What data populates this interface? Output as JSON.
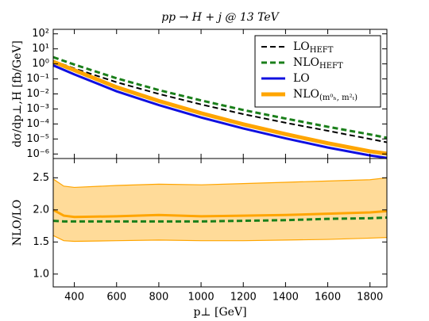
{
  "chart_data": [
    {
      "type": "line",
      "title": "pp → H + j @ 13 TeV",
      "ylabel": "dσ/dp⊥,H [fb/GeV]",
      "log_y": true,
      "ylim": [
        5e-07,
        200
      ],
      "xlim": [
        300,
        1880
      ],
      "yticks": [
        {
          "value": 1e-06,
          "label": "10⁻⁶"
        },
        {
          "value": 1e-05,
          "label": "10⁻⁵"
        },
        {
          "value": 0.0001,
          "label": "10⁻⁴"
        },
        {
          "value": 0.001,
          "label": "10⁻³"
        },
        {
          "value": 0.01,
          "label": "10⁻²"
        },
        {
          "value": 0.1,
          "label": "10⁻¹"
        },
        {
          "value": 1,
          "label": "10⁰"
        },
        {
          "value": 10,
          "label": "10¹"
        },
        {
          "value": 100,
          "label": "10²"
        }
      ],
      "xticks": [
        400,
        600,
        800,
        1000,
        1200,
        1400,
        1600,
        1800
      ],
      "legend": "upper right",
      "x": [
        300,
        400,
        600,
        800,
        1000,
        1200,
        1400,
        1600,
        1800,
        1880
      ],
      "series": [
        {
          "name": "LO",
          "sub": "HEFT",
          "color": "#000000",
          "dash": true,
          "width": 2,
          "values": [
            1.6,
            0.5,
            0.06,
            0.01,
            0.002,
            0.00045,
            0.00012,
            3.5e-05,
            1e-05,
            6e-06
          ]
        },
        {
          "name": "NLO",
          "sub": "HEFT",
          "color": "#1a7f1a",
          "dash": true,
          "width": 3,
          "values": [
            2.8,
            0.9,
            0.11,
            0.018,
            0.0037,
            0.00085,
            0.00023,
            6.5e-05,
            2e-05,
            1.2e-05
          ]
        },
        {
          "name": "LO",
          "color": "#1010e0",
          "dash": false,
          "width": 3,
          "values": [
            0.8,
            0.2,
            0.015,
            0.0018,
            0.00027,
            5e-05,
            1.1e-05,
            2.7e-06,
            8e-07,
            5.5e-07
          ]
        },
        {
          "name": "NLO",
          "sub": "(m⁰ₕ, m²ₜ)",
          "color": "#ffa500",
          "dash": false,
          "width": 5,
          "values": [
            1.4,
            0.38,
            0.028,
            0.0034,
            0.00052,
            9.5e-05,
            2.1e-05,
            5.2e-06,
            1.5e-06,
            1.05e-06
          ]
        }
      ]
    },
    {
      "type": "line",
      "ylabel": "NLO/LO",
      "xlabel": "p⊥ [GeV]",
      "ylim": [
        0.8,
        2.8
      ],
      "xlim": [
        300,
        1880
      ],
      "yticks": [
        {
          "value": 1,
          "label": "1.0"
        },
        {
          "value": 1.5,
          "label": "1.5"
        },
        {
          "value": 2,
          "label": "2.0"
        },
        {
          "value": 2.5,
          "label": "2.5"
        }
      ],
      "xticks": [
        400,
        600,
        800,
        1000,
        1200,
        1400,
        1600,
        1800
      ],
      "x": [
        300,
        350,
        400,
        600,
        800,
        1000,
        1200,
        1400,
        1600,
        1800,
        1880
      ],
      "band": {
        "color": "#ffa500",
        "upper": [
          2.48,
          2.37,
          2.35,
          2.38,
          2.4,
          2.39,
          2.41,
          2.43,
          2.45,
          2.47,
          2.5
        ],
        "lower": [
          1.6,
          1.52,
          1.51,
          1.52,
          1.53,
          1.52,
          1.52,
          1.53,
          1.54,
          1.56,
          1.57
        ]
      },
      "series": [
        {
          "color": "#1a7f1a",
          "dash": true,
          "width": 3,
          "values": [
            1.83,
            1.82,
            1.82,
            1.82,
            1.82,
            1.82,
            1.83,
            1.84,
            1.86,
            1.87,
            1.88
          ]
        },
        {
          "color": "#ffa500",
          "dash": false,
          "width": 3,
          "values": [
            2.0,
            1.91,
            1.89,
            1.9,
            1.92,
            1.9,
            1.91,
            1.92,
            1.94,
            1.96,
            1.98
          ]
        }
      ]
    }
  ]
}
